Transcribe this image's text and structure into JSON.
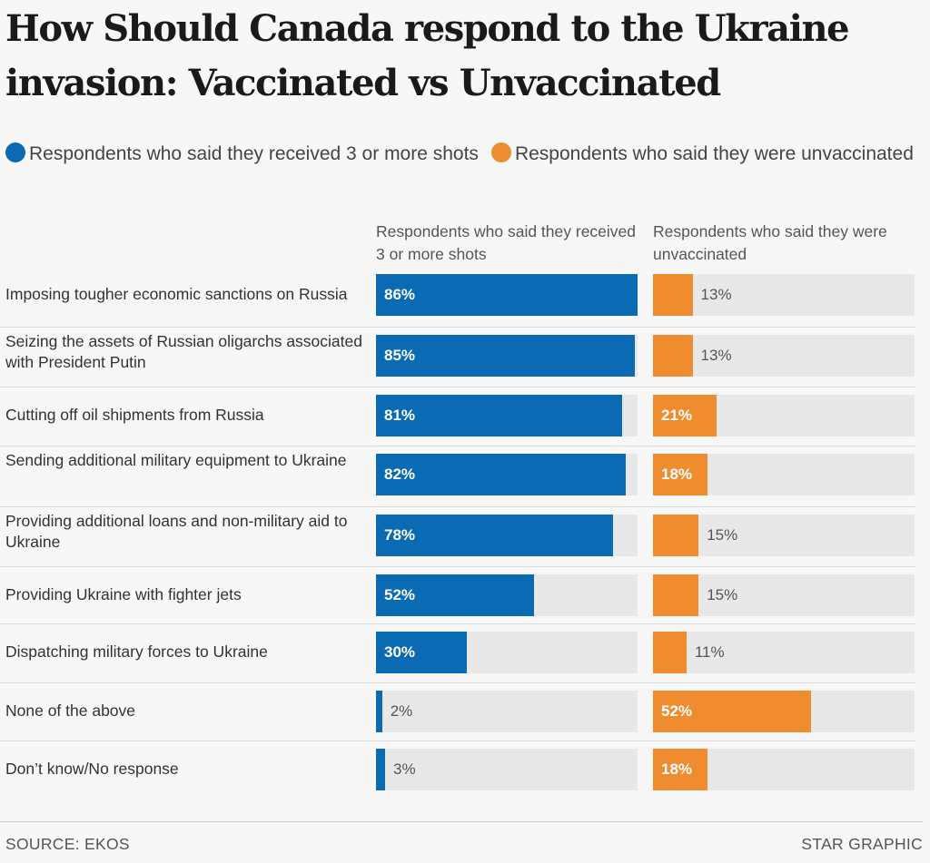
{
  "title": "How Should Canada respond to the Ukraine invasion: Vaccinated vs Unvaccinated",
  "legend": {
    "vaccinated": "Respondents who said they received 3 or more shots",
    "unvaccinated": "Respondents who said they were unvaccinated"
  },
  "columns": {
    "vaccinated": "Respondents who said they received 3 or more shots",
    "unvaccinated": "Respondents who said they were unvaccinated"
  },
  "colors": {
    "vaccinated": "#0a6ab4",
    "unvaccinated": "#f08c30",
    "track": "#e8e8e8"
  },
  "chart_data": {
    "type": "bar",
    "orientation": "horizontal",
    "title": "How Should Canada respond to the Ukraine invasion: Vaccinated vs Unvaccinated",
    "categories": [
      "Imposing tougher economic sanctions on Russia",
      "Seizing the assets of Russian oligarchs associated with President Putin",
      "Cutting off oil shipments from Russia",
      "Sending additional military equipment to Ukraine",
      "Providing additional loans and non-military aid to Ukraine",
      "Providing Ukraine with fighter jets",
      "Dispatching military forces to Ukraine",
      "None of the above",
      "Don’t know/No response"
    ],
    "series": [
      {
        "name": "Respondents who said they received 3 or more shots",
        "values": [
          86,
          85,
          81,
          82,
          78,
          52,
          30,
          2,
          3
        ],
        "labels": [
          "86%",
          "85%",
          "81%",
          "82%",
          "78%",
          "52%",
          "30%",
          "2%",
          "3%"
        ]
      },
      {
        "name": "Respondents who said they were unvaccinated",
        "values": [
          13,
          13,
          21,
          18,
          15,
          15,
          11,
          52,
          18
        ],
        "labels": [
          "13%",
          "13%",
          "21%",
          "18%",
          "15%",
          "15%",
          "11%",
          "52%",
          "18%"
        ]
      }
    ],
    "xlim": [
      0,
      100
    ],
    "unit": "%"
  },
  "footer": {
    "source": "SOURCE: EKOS",
    "credit": "STAR GRAPHIC"
  }
}
